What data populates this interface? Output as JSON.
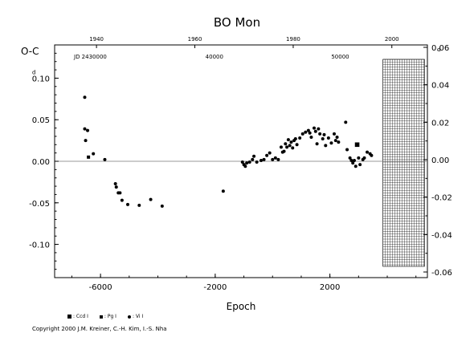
{
  "chart_data": {
    "type": "scatter",
    "title": "BO Mon",
    "ylabel": "O-C",
    "y_unit_left": "d",
    "y_unit_right": "d",
    "xlabel": "Epoch",
    "xlim": [
      -7600,
      5400
    ],
    "ylim": [
      -0.14,
      0.14
    ],
    "x_ticks": [
      -6000,
      -2000,
      2000
    ],
    "x_tick_labels": [
      "-6000",
      "-2000",
      "2000"
    ],
    "y_ticks": [
      -0.1,
      -0.05,
      0.0,
      0.05,
      0.1
    ],
    "y_tick_labels": [
      "-0.10",
      "-0.05",
      "0.00",
      "0.05",
      "0.10"
    ],
    "right_y_ticks": [
      -0.06,
      -0.04,
      -0.02,
      0.0,
      0.02,
      0.04,
      0.06
    ],
    "right_y_tick_labels": [
      "-0.06",
      "-0.04",
      "-0.02",
      "0.00",
      "0.02",
      "0.04",
      "0.06"
    ],
    "top_year_ticks": [
      "1940",
      "1960",
      "1980",
      "2000"
    ],
    "top_year_epochs": [
      -6140,
      -2710,
      720,
      4160
    ],
    "top_jd_label": "JD 2430000",
    "top_jd_ticks": [
      "40000",
      "50000"
    ],
    "top_jd_epochs": [
      -2030,
      2360
    ],
    "grid": false,
    "hatched_region_x": [
      3850,
      5300
    ],
    "legend": [
      {
        "symbol": "square-large",
        "label": ": Ccd I"
      },
      {
        "symbol": "square",
        "label": ": Pg I"
      },
      {
        "symbol": "dot",
        "label": ": Vi I"
      }
    ],
    "series": [
      {
        "symbol": "dot",
        "points": [
          [
            -6550,
            0.077
          ],
          [
            -6550,
            0.039
          ],
          [
            -6520,
            0.025
          ],
          [
            -6450,
            0.037
          ],
          [
            -6250,
            0.009
          ],
          [
            -5850,
            0.002
          ],
          [
            -5480,
            -0.027
          ],
          [
            -5450,
            -0.031
          ],
          [
            -5380,
            -0.038
          ],
          [
            -5320,
            -0.038
          ],
          [
            -5250,
            -0.047
          ],
          [
            -5050,
            -0.052
          ],
          [
            -4650,
            -0.053
          ],
          [
            -4250,
            -0.046
          ],
          [
            -3850,
            -0.054
          ],
          [
            -1720,
            -0.036
          ],
          [
            -1050,
            -0.001
          ],
          [
            -1000,
            -0.004
          ],
          [
            -950,
            -0.006
          ],
          [
            -900,
            -0.002
          ],
          [
            -800,
            -0.001
          ],
          [
            -700,
            0.002
          ],
          [
            -650,
            0.006
          ],
          [
            -550,
            -0.001
          ],
          [
            -400,
            0.001
          ],
          [
            -300,
            0.002
          ],
          [
            -200,
            0.007
          ],
          [
            -100,
            0.01
          ],
          [
            0,
            0.002
          ],
          [
            100,
            0.004
          ],
          [
            200,
            0.002
          ],
          [
            300,
            0.017
          ],
          [
            350,
            0.011
          ],
          [
            400,
            0.012
          ],
          [
            450,
            0.021
          ],
          [
            500,
            0.017
          ],
          [
            550,
            0.026
          ],
          [
            600,
            0.019
          ],
          [
            650,
            0.023
          ],
          [
            700,
            0.016
          ],
          [
            750,
            0.025
          ],
          [
            800,
            0.027
          ],
          [
            850,
            0.02
          ],
          [
            950,
            0.028
          ],
          [
            1050,
            0.033
          ],
          [
            1150,
            0.035
          ],
          [
            1250,
            0.037
          ],
          [
            1300,
            0.034
          ],
          [
            1350,
            0.029
          ],
          [
            1450,
            0.04
          ],
          [
            1500,
            0.036
          ],
          [
            1550,
            0.021
          ],
          [
            1600,
            0.039
          ],
          [
            1650,
            0.033
          ],
          [
            1750,
            0.027
          ],
          [
            1800,
            0.032
          ],
          [
            1850,
            0.019
          ],
          [
            1950,
            0.028
          ],
          [
            2050,
            0.022
          ],
          [
            2150,
            0.033
          ],
          [
            2200,
            0.025
          ],
          [
            2250,
            0.029
          ],
          [
            2300,
            0.023
          ],
          [
            2550,
            0.047
          ],
          [
            2600,
            0.014
          ],
          [
            2700,
            0.004
          ],
          [
            2750,
            0.001
          ],
          [
            2800,
            -0.002
          ],
          [
            2850,
            0.001
          ],
          [
            2900,
            -0.006
          ],
          [
            3000,
            0.004
          ],
          [
            3050,
            -0.004
          ],
          [
            3150,
            0.002
          ],
          [
            3200,
            0.004
          ],
          [
            3300,
            0.011
          ],
          [
            3400,
            0.009
          ],
          [
            3450,
            0.007
          ]
        ]
      },
      {
        "symbol": "square",
        "points": [
          [
            -6420,
            0.005
          ]
        ]
      },
      {
        "symbol": "square-large",
        "points": [
          [
            2950,
            0.02
          ]
        ]
      }
    ]
  },
  "copyright": "Copyright 2000 J.M. Kreiner, C.-H. Kim, I.-S. Nha"
}
